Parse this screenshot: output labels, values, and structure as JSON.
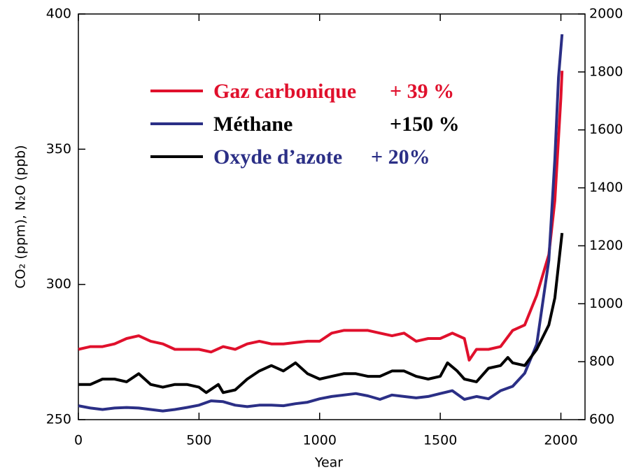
{
  "chart_data": {
    "type": "line",
    "x_label": "Year",
    "y_label": "CO₂ (ppm), N₂O (ppb)",
    "xlim": [
      0,
      2100
    ],
    "xticks": [
      0,
      500,
      1000,
      1500,
      2000
    ],
    "ylim": [
      250,
      400
    ],
    "yticks": [
      250,
      300,
      350,
      400
    ],
    "y2lim": [
      600,
      2000
    ],
    "y2ticks": [
      600,
      800,
      1000,
      1200,
      1400,
      1600,
      1800,
      2000
    ],
    "series": [
      {
        "name": "Gaz carbonique",
        "change": "+ 39 %",
        "color": "#e0102c",
        "legend_text_color": "#e0102c",
        "axis": "y",
        "x": [
          0,
          50,
          100,
          150,
          200,
          250,
          300,
          350,
          400,
          450,
          500,
          550,
          600,
          650,
          700,
          750,
          800,
          850,
          900,
          950,
          1000,
          1050,
          1100,
          1150,
          1200,
          1250,
          1300,
          1350,
          1400,
          1450,
          1500,
          1550,
          1600,
          1620,
          1650,
          1700,
          1750,
          1800,
          1850,
          1900,
          1950,
          1975,
          2000,
          2005
        ],
        "values": [
          276,
          277,
          277,
          278,
          280,
          281,
          279,
          278,
          276,
          276,
          276,
          275,
          277,
          276,
          278,
          279,
          278,
          278,
          278.5,
          279,
          279,
          282,
          283,
          283,
          283,
          282,
          281,
          282,
          279,
          280,
          280,
          282,
          280,
          272,
          276,
          276,
          277,
          283,
          285,
          296,
          311,
          331,
          369,
          379
        ]
      },
      {
        "name": "Méthane",
        "change": "+150 %",
        "color": "#2b2f86",
        "legend_text_color": "#000000",
        "axis": "y2",
        "x": [
          0,
          50,
          100,
          150,
          200,
          250,
          300,
          350,
          400,
          450,
          500,
          550,
          600,
          650,
          700,
          750,
          800,
          850,
          900,
          950,
          1000,
          1050,
          1100,
          1150,
          1200,
          1250,
          1300,
          1350,
          1400,
          1450,
          1500,
          1550,
          1600,
          1650,
          1700,
          1750,
          1800,
          1850,
          1900,
          1950,
          1975,
          1990,
          2005
        ],
        "values": [
          648,
          640,
          635,
          640,
          642,
          640,
          635,
          630,
          635,
          642,
          650,
          665,
          662,
          650,
          645,
          650,
          650,
          648,
          655,
          660,
          672,
          680,
          685,
          690,
          682,
          670,
          685,
          680,
          675,
          680,
          690,
          700,
          670,
          680,
          672,
          700,
          715,
          760,
          860,
          1150,
          1500,
          1780,
          1930
        ]
      },
      {
        "name": "Oxyde d’azote",
        "change": "+ 20%",
        "color": "#000000",
        "legend_text_color": "#2b2f86",
        "axis": "y",
        "x": [
          0,
          50,
          100,
          150,
          200,
          250,
          300,
          350,
          400,
          450,
          500,
          530,
          580,
          600,
          650,
          700,
          750,
          800,
          850,
          900,
          950,
          1000,
          1050,
          1100,
          1150,
          1200,
          1250,
          1300,
          1350,
          1400,
          1450,
          1500,
          1530,
          1570,
          1600,
          1650,
          1700,
          1750,
          1780,
          1800,
          1850,
          1900,
          1950,
          1975,
          2005
        ],
        "values": [
          263,
          263,
          265,
          265,
          264,
          267,
          263,
          262,
          263,
          263,
          262,
          260,
          263,
          260,
          261,
          265,
          268,
          270,
          268,
          271,
          267,
          265,
          266,
          267,
          267,
          266,
          266,
          268,
          268,
          266,
          265,
          266,
          271,
          268,
          265,
          264,
          269,
          270,
          273,
          271,
          270,
          276,
          285,
          295,
          319
        ]
      }
    ]
  }
}
